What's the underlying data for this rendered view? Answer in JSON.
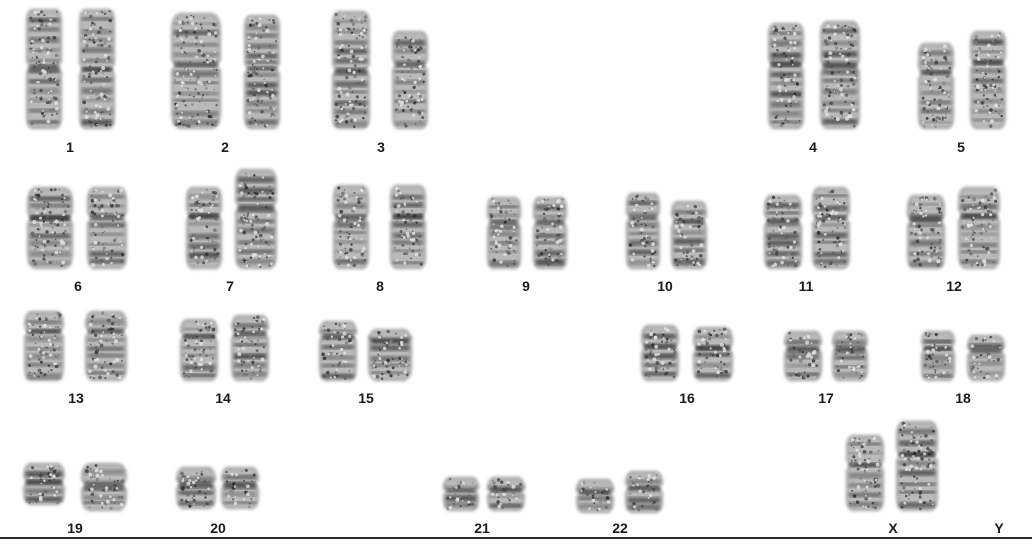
{
  "karyotype": {
    "pairs": [
      {
        "label": "1"
      },
      {
        "label": "2"
      },
      {
        "label": "3"
      },
      {
        "label": "4"
      },
      {
        "label": "5"
      },
      {
        "label": "6"
      },
      {
        "label": "7"
      },
      {
        "label": "8"
      },
      {
        "label": "9"
      },
      {
        "label": "10"
      },
      {
        "label": "11"
      },
      {
        "label": "12"
      },
      {
        "label": "13"
      },
      {
        "label": "14"
      },
      {
        "label": "15"
      },
      {
        "label": "16"
      },
      {
        "label": "17"
      },
      {
        "label": "18"
      },
      {
        "label": "19"
      },
      {
        "label": "20"
      },
      {
        "label": "21"
      },
      {
        "label": "22"
      },
      {
        "label": "X"
      },
      {
        "label": "Y"
      }
    ]
  }
}
